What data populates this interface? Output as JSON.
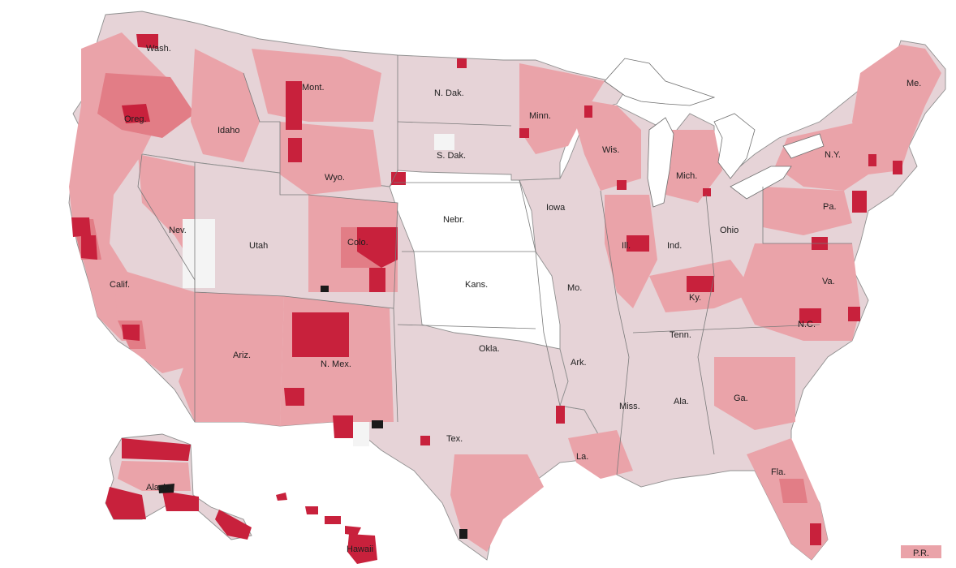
{
  "colors": {
    "background": "#ffffff",
    "lowest": "#e6d3d7",
    "low": "#eaa3a9",
    "mid": "#e27d86",
    "high": "#c8213c",
    "highest": "#1a1a1a",
    "none": "#f4f4f4",
    "border": "#8f8f8f",
    "water": "#ffffff"
  },
  "states": {
    "wash": "Wash.",
    "oreg": "Oreg.",
    "calif": "Calif.",
    "idaho": "Idaho",
    "nev": "Nev.",
    "utah": "Utah",
    "ariz": "Ariz.",
    "mont": "Mont.",
    "wyo": "Wyo.",
    "colo": "Colo.",
    "nmex": "N. Mex.",
    "ndak": "N. Dak.",
    "sdak": "S. Dak.",
    "nebr": "Nebr.",
    "kans": "Kans.",
    "okla": "Okla.",
    "tex": "Tex.",
    "minn": "Minn.",
    "iowa": "Iowa",
    "mo": "Mo.",
    "ark": "Ark.",
    "la": "La.",
    "wis": "Wis.",
    "ill": "Ill.",
    "mich": "Mich.",
    "ind": "Ind.",
    "ohio": "Ohio",
    "ky": "Ky.",
    "tenn": "Tenn.",
    "miss": "Miss.",
    "ala": "Ala.",
    "ga": "Ga.",
    "fla": "Fla.",
    "nc": "N.C.",
    "va": "Va.",
    "pa": "Pa.",
    "ny": "N.Y.",
    "me": "Me.",
    "alaska": "Alaska",
    "hawaii": "Hawaii",
    "pr": "P.R."
  }
}
